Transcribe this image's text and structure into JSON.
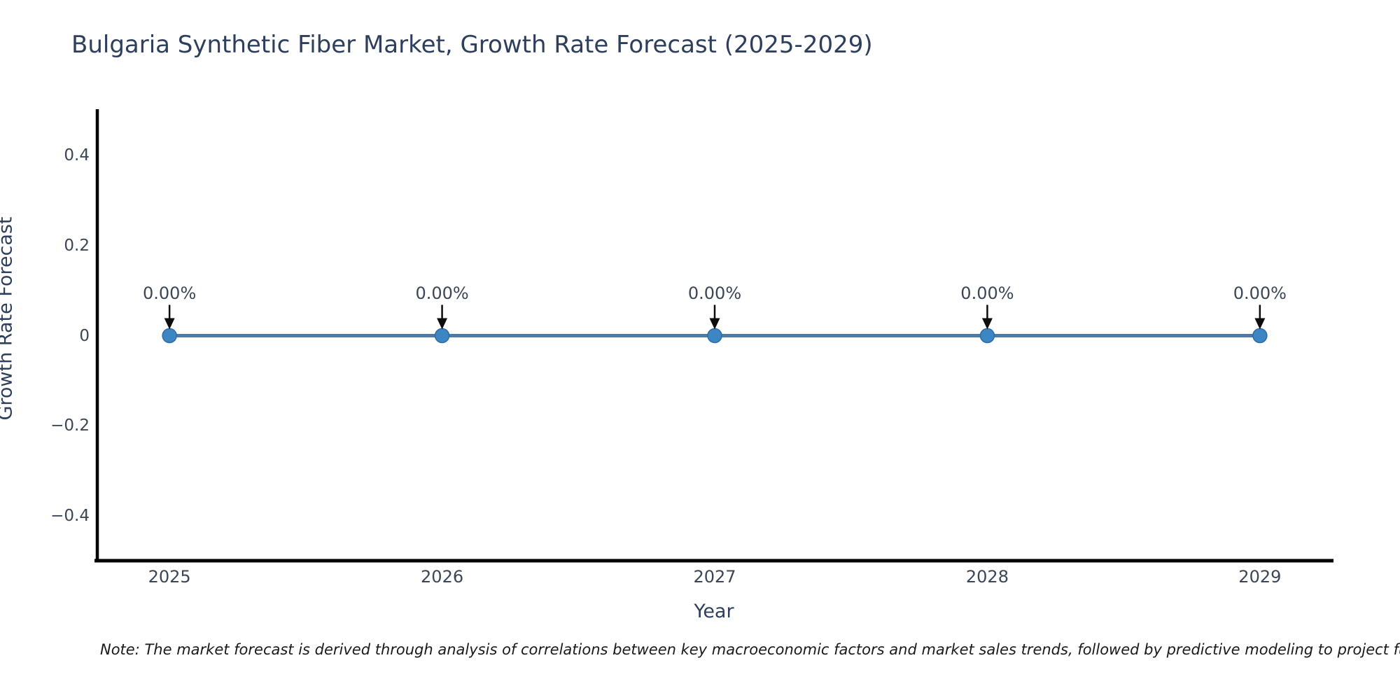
{
  "chart_data": {
    "type": "line",
    "title": "Bulgaria Synthetic Fiber Market, Growth Rate Forecast (2025-2029)",
    "xlabel": "Year",
    "ylabel": "Growth Rate Forecast",
    "categories": [
      "2025",
      "2026",
      "2027",
      "2028",
      "2029"
    ],
    "series": [
      {
        "name": "Growth Rate Forecast",
        "values": [
          0,
          0,
          0,
          0,
          0
        ]
      }
    ],
    "point_labels": [
      "0.00%",
      "0.00%",
      "0.00%",
      "0.00%",
      "0.00%"
    ],
    "yticks": [
      0.4,
      0.2,
      0,
      -0.2,
      -0.4
    ],
    "ytick_labels": [
      "0.4",
      "0.2",
      "0",
      "−0.2",
      "−0.4"
    ],
    "ylim": [
      -0.5,
      0.5
    ],
    "grid": false,
    "legend": "none",
    "annotation_style": "label-with-down-arrow",
    "colors": {
      "line": "#4d7ba6",
      "marker_fill": "#3c86c4",
      "marker_edge": "#2e6ca8",
      "arrow": "#0d0d0d",
      "axis": "#000000",
      "title_text": "#2e3f5c",
      "tick_text": "#3b4757"
    }
  },
  "note": {
    "text": "Note: The market forecast is derived through analysis of correlations between key macroeconomic factors and market sales trends, followed by predictive modeling to project future sales."
  }
}
